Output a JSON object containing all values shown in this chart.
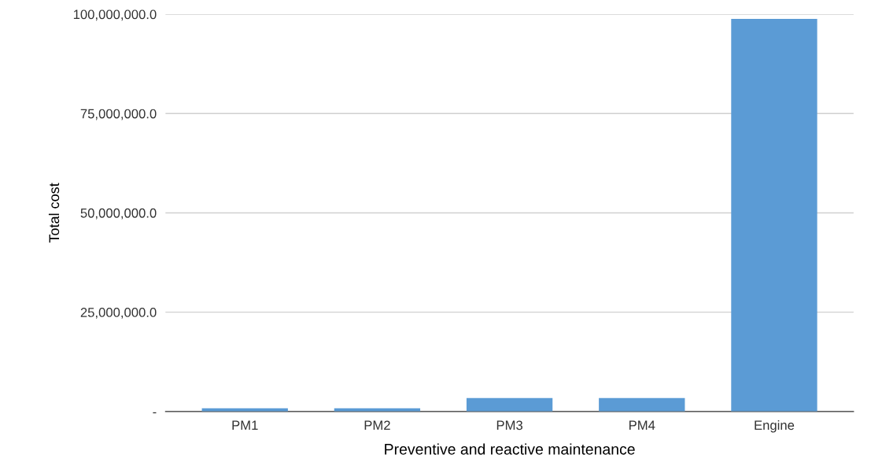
{
  "chart_data": {
    "type": "bar",
    "xlabel": "Preventive and reactive maintenance",
    "ylabel": "Total cost",
    "categories": [
      "PM1",
      "PM2",
      "PM3",
      "PM4",
      "Engine"
    ],
    "values": [
      800000,
      800000,
      3400000,
      3400000,
      98800000
    ],
    "color": "#5b9bd5",
    "ylim": [
      0,
      100000000
    ],
    "yticks": [
      {
        "value": 0,
        "label": "-"
      },
      {
        "value": 25000000,
        "label": "25,000,000.0"
      },
      {
        "value": 50000000,
        "label": "50,000,000.0"
      },
      {
        "value": 75000000,
        "label": "75,000,000.0"
      },
      {
        "value": 100000000,
        "label": "100,000,000.0"
      }
    ],
    "grid": "y"
  }
}
